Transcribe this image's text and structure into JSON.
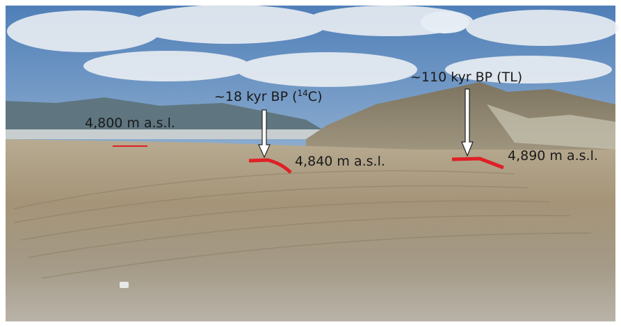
{
  "annotations": {
    "elevations": [
      {
        "label": "4,800 m a.s.l."
      },
      {
        "label": "4,840 m a.s.l."
      },
      {
        "label": "4,890 m a.s.l."
      }
    ],
    "ages": [
      {
        "text": "~18 kyr BP (",
        "superscript": "14",
        "tail": "C)"
      },
      {
        "text": "~110 kyr BP (TL)"
      }
    ]
  }
}
